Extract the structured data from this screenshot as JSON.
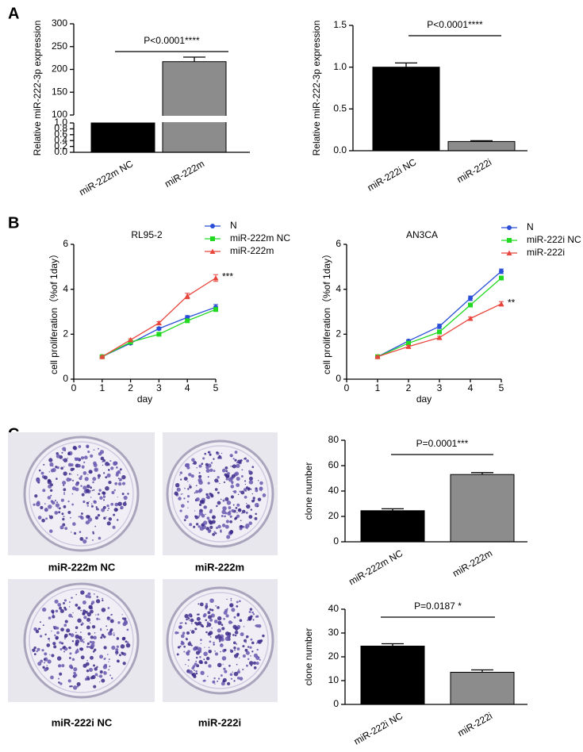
{
  "panels": [
    "A",
    "B",
    "C"
  ],
  "captions": [
    "miR-222m NC",
    "miR-222m",
    "miR-222i NC",
    "miR-222i"
  ],
  "chart_data": [
    {
      "type": "bar",
      "ylabel": "Relative miR-222-3p expression",
      "annotation": "P<0.0001****",
      "categories": [
        "miR-222m NC",
        "miR-222m"
      ],
      "values": [
        1.0,
        217
      ],
      "errors": [
        null,
        10
      ],
      "colors": [
        "#000000",
        "#8c8c8c"
      ],
      "ylim": [
        0,
        300
      ],
      "y_break": [
        1.0,
        100
      ],
      "yticks": [
        {
          "value": 0,
          "label": "0.0"
        },
        {
          "value": 0.2,
          "label": "0.2"
        },
        {
          "value": 0.4,
          "label": "0.4"
        },
        {
          "value": 0.6,
          "label": "0.6"
        },
        {
          "value": 0.8,
          "label": "0.8"
        },
        {
          "value": 1.0,
          "label": "1.0"
        },
        100,
        150,
        200,
        250,
        300
      ]
    },
    {
      "type": "bar",
      "ylabel": "Relative miR-222-3p expression",
      "annotation": "P<0.0001****",
      "categories": [
        "miR-222i NC",
        "miR-222i"
      ],
      "values": [
        1.0,
        0.11
      ],
      "errors": [
        0.05,
        0.01
      ],
      "colors": [
        "#000000",
        "#8c8c8c"
      ],
      "ylim": [
        0,
        1.5
      ],
      "yticks": [
        {
          "value": 0,
          "label": "0.0"
        },
        {
          "value": 0.5,
          "label": "0.5"
        },
        {
          "value": 1.0,
          "label": "1.0"
        },
        {
          "value": 1.5,
          "label": "1.5"
        }
      ]
    },
    {
      "type": "line",
      "title": "RL95-2",
      "xlabel": "day",
      "ylabel": "cell proliferation（%of 1day）",
      "annotation": "***",
      "x": [
        1,
        2,
        3,
        4,
        5
      ],
      "xlim": [
        0,
        5
      ],
      "xticks": [
        0,
        1,
        2,
        3,
        4,
        5
      ],
      "ylim": [
        0,
        6
      ],
      "yticks": [
        0,
        2,
        4,
        6
      ],
      "series": [
        {
          "name": "N",
          "color": "#2b4fd8",
          "marker": "circle",
          "values": [
            1,
            1.6,
            2.25,
            2.75,
            3.2
          ],
          "errors": [
            0.03,
            0.05,
            0.06,
            0.08,
            0.12
          ]
        },
        {
          "name": "miR-222m NC",
          "color": "#22d922",
          "marker": "square",
          "values": [
            1,
            1.65,
            2.0,
            2.6,
            3.1
          ],
          "errors": [
            0.03,
            0.05,
            0.06,
            0.07,
            0.08
          ]
        },
        {
          "name": "miR-222m",
          "color": "#e8453c",
          "marker": "triangle",
          "values": [
            1,
            1.75,
            2.5,
            3.7,
            4.5
          ],
          "errors": [
            0.03,
            0.05,
            0.06,
            0.12,
            0.15
          ]
        }
      ]
    },
    {
      "type": "line",
      "title": "AN3CA",
      "xlabel": "day",
      "ylabel": "cell proliferation（%of 1day）",
      "annotation": "**",
      "x": [
        1,
        2,
        3,
        4,
        5
      ],
      "xlim": [
        0,
        5
      ],
      "xticks": [
        0,
        1,
        2,
        3,
        4,
        5
      ],
      "ylim": [
        0,
        6
      ],
      "yticks": [
        0,
        2,
        4,
        6
      ],
      "series": [
        {
          "name": "N",
          "color": "#2b4fd8",
          "marker": "circle",
          "values": [
            1,
            1.7,
            2.35,
            3.6,
            4.8
          ],
          "errors": [
            0.03,
            0.05,
            0.1,
            0.1,
            0.1
          ]
        },
        {
          "name": "miR-222i NC",
          "color": "#22d922",
          "marker": "square",
          "values": [
            1,
            1.6,
            2.1,
            3.3,
            4.5
          ],
          "errors": [
            0.03,
            0.05,
            0.06,
            0.08,
            0.08
          ]
        },
        {
          "name": "miR-222i",
          "color": "#e8453c",
          "marker": "triangle",
          "values": [
            1,
            1.45,
            1.85,
            2.7,
            3.35
          ],
          "errors": [
            0.03,
            0.05,
            0.06,
            0.06,
            0.1
          ]
        }
      ]
    },
    {
      "type": "bar",
      "ylabel": "clone number",
      "annotation": "P=0.0001***",
      "categories": [
        "miR-222m NC",
        "miR-222m"
      ],
      "values": [
        24.5,
        53
      ],
      "errors": [
        1.5,
        1.5
      ],
      "colors": [
        "#000000",
        "#8c8c8c"
      ],
      "ylim": [
        0,
        80
      ],
      "yticks": [
        0,
        20,
        40,
        60,
        80
      ]
    },
    {
      "type": "bar",
      "ylabel": "clone number",
      "annotation": "P=0.0187 *",
      "categories": [
        "miR-222i NC",
        "miR-222i"
      ],
      "values": [
        24.5,
        13.5
      ],
      "errors": [
        1,
        1
      ],
      "colors": [
        "#000000",
        "#8c8c8c"
      ],
      "ylim": [
        0,
        40
      ],
      "yticks": [
        0,
        10,
        20,
        30,
        40
      ]
    }
  ]
}
